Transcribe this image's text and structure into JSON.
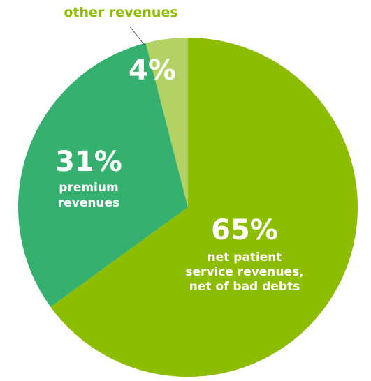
{
  "chart_data": {
    "type": "pie",
    "slices": [
      {
        "label_lines": [
          "net patient",
          "service revenues,",
          "net of bad debts"
        ],
        "value": 65,
        "value_label": "65%",
        "color": "#8cbd00"
      },
      {
        "label_lines": [
          "premium",
          "revenues"
        ],
        "value": 31,
        "value_label": "31%",
        "color": "#35b06f"
      },
      {
        "label_lines": [],
        "value": 4,
        "value_label": "4%",
        "color": "#b3d165"
      }
    ],
    "callout": {
      "text": "other revenues",
      "color": "#8cbd00"
    },
    "callout_line_color": "#555555"
  }
}
